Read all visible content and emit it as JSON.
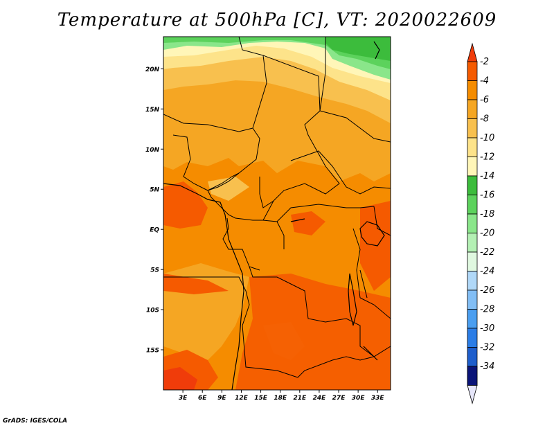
{
  "title": "Temperature at 500hPa [C], VT: 2020022609",
  "credit": "GrADS: IGES/COLA",
  "map": {
    "region": "Central Africa",
    "lon_range": [
      0,
      35
    ],
    "lat_range": [
      -20,
      24
    ],
    "lat_ticks": [
      {
        "label": "20N",
        "value": 20
      },
      {
        "label": "15N",
        "value": 15
      },
      {
        "label": "10N",
        "value": 10
      },
      {
        "label": "5N",
        "value": 5
      },
      {
        "label": "EQ",
        "value": 0
      },
      {
        "label": "5S",
        "value": -5
      },
      {
        "label": "10S",
        "value": -10
      },
      {
        "label": "15S",
        "value": -15
      }
    ],
    "lon_ticks": [
      {
        "label": "3E",
        "value": 3
      },
      {
        "label": "6E",
        "value": 6
      },
      {
        "label": "9E",
        "value": 9
      },
      {
        "label": "12E",
        "value": 12
      },
      {
        "label": "15E",
        "value": 15
      },
      {
        "label": "18E",
        "value": 18
      },
      {
        "label": "21E",
        "value": 21
      },
      {
        "label": "24E",
        "value": 24
      },
      {
        "label": "27E",
        "value": 27
      },
      {
        "label": "30E",
        "value": 30
      },
      {
        "label": "33E",
        "value": 33
      }
    ]
  },
  "legend": {
    "unit": "C",
    "top_arrow_color": "#f03c0a",
    "bottom_arrow_color": "#e6e6fa",
    "bins": [
      {
        "label": "-2",
        "color": "#f55a00"
      },
      {
        "label": "-4",
        "color": "#f58c00"
      },
      {
        "label": "-6",
        "color": "#f5a623"
      },
      {
        "label": "-8",
        "color": "#f8c04e"
      },
      {
        "label": "-10",
        "color": "#fde38a"
      },
      {
        "label": "-12",
        "color": "#fff6b8"
      },
      {
        "label": "-14",
        "color": "#3cbc3c"
      },
      {
        "label": "-16",
        "color": "#5cd25c"
      },
      {
        "label": "-18",
        "color": "#8ae68a"
      },
      {
        "label": "-20",
        "color": "#b4f0b4"
      },
      {
        "label": "-22",
        "color": "#e0f8e0"
      },
      {
        "label": "-24",
        "color": "#b0d8f8"
      },
      {
        "label": "-26",
        "color": "#82bef5"
      },
      {
        "label": "-28",
        "color": "#4a9ef0"
      },
      {
        "label": "-30",
        "color": "#2b7de6"
      },
      {
        "label": "-32",
        "color": "#1e5ecc"
      },
      {
        "label": "-34",
        "color": "#0f3ab4"
      },
      {
        "label": "",
        "color": "#0a1478"
      }
    ]
  }
}
